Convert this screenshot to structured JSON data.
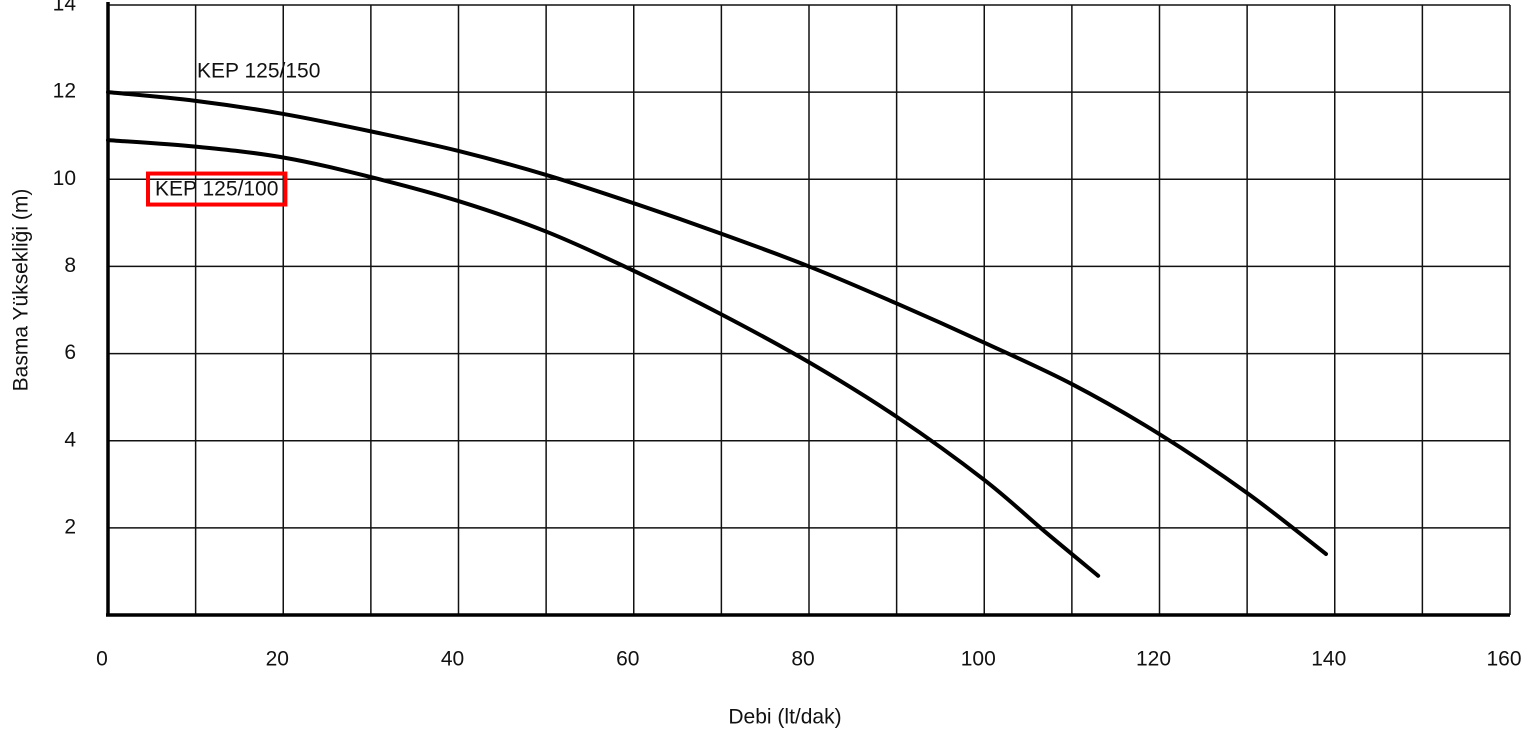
{
  "chart_data": {
    "type": "line",
    "x_label": "Debi (lt/dak)",
    "y_label": "Basma Yüksekliği (m)",
    "xlim": [
      0,
      160
    ],
    "xticks": [
      0,
      20,
      40,
      60,
      80,
      100,
      120,
      140,
      160
    ],
    "xminorticks": [
      10,
      30,
      50,
      70,
      90,
      110,
      130,
      150
    ],
    "ylim": [
      0,
      14
    ],
    "yticks": [
      2,
      4,
      6,
      8,
      10,
      12,
      14
    ],
    "grid": true,
    "series": [
      {
        "name": "KEP 125/150",
        "color": "#000000",
        "x": [
          0,
          10,
          20,
          30,
          40,
          50,
          60,
          70,
          80,
          90,
          100,
          110,
          120,
          130,
          139
        ],
        "values": [
          12,
          11.8,
          11.5,
          11.1,
          10.65,
          10.1,
          9.45,
          8.75,
          8.0,
          7.15,
          6.25,
          5.3,
          4.15,
          2.8,
          1.4
        ]
      },
      {
        "name": "KEP 125/100",
        "color": "#000000",
        "x": [
          0,
          10,
          20,
          30,
          40,
          50,
          60,
          70,
          80,
          90,
          100,
          107,
          113
        ],
        "values": [
          10.9,
          10.75,
          10.5,
          10.05,
          9.5,
          8.8,
          7.9,
          6.9,
          5.8,
          4.55,
          3.1,
          1.9,
          0.9
        ]
      }
    ]
  }
}
